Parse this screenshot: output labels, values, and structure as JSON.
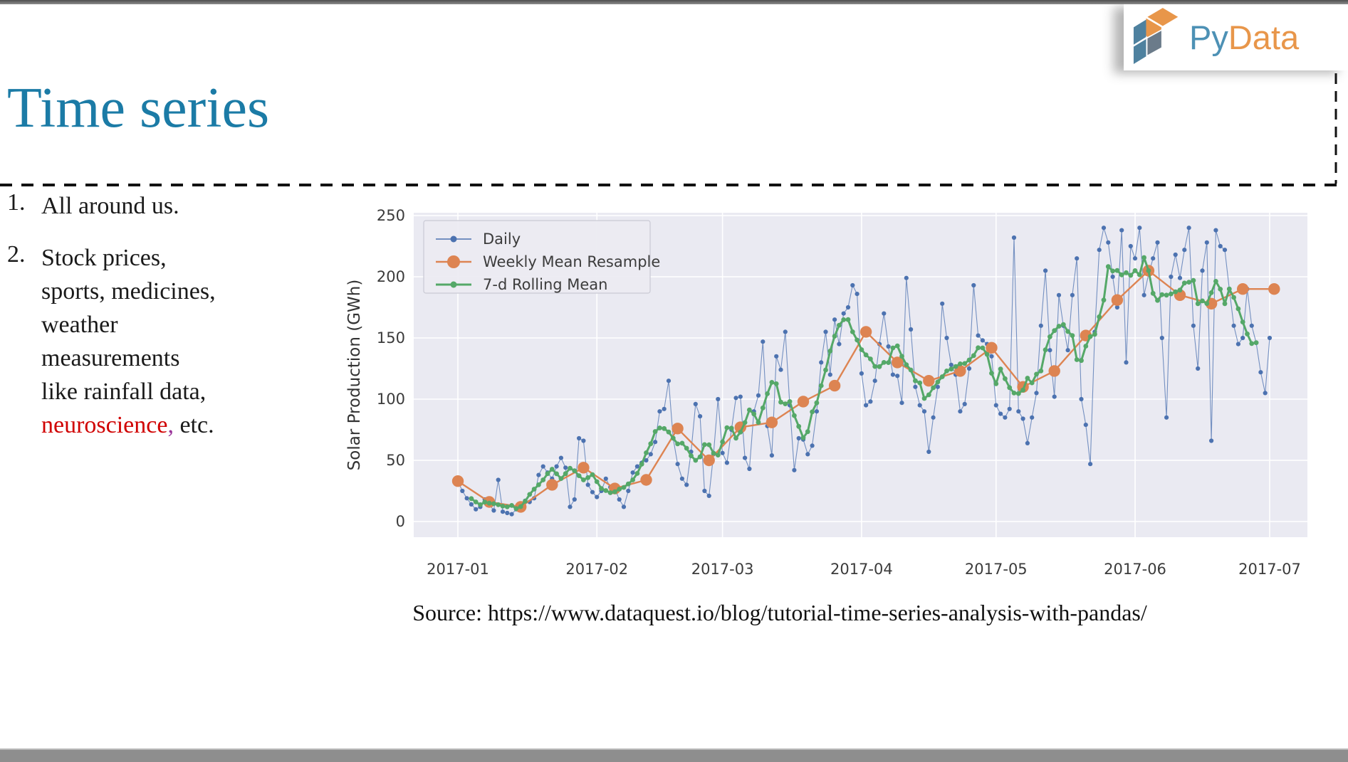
{
  "chrome": {
    "top_bar_color": "#7d7d7d",
    "bottom_bar_color": "#8e8e8e",
    "divider_color": "#111111"
  },
  "logo": {
    "text_py": "Py",
    "text_data": "Data",
    "py_color": "#4d91b5",
    "data_color": "#e8964a",
    "cube_orange": "#e8964a",
    "cube_blue": "#4e819f",
    "cube_gray": "#6b7b8a"
  },
  "slide": {
    "title": "Time series",
    "title_color": "#1b7ba6",
    "source_line": "Source: https://www.dataquest.io/blog/tutorial-time-series-analysis-with-pandas/"
  },
  "list_items": [
    {
      "number": "1.",
      "lines": [
        [
          {
            "t": "All around us.",
            "c": "#1a1a1a"
          }
        ]
      ]
    },
    {
      "number": "2.",
      "lines": [
        [
          {
            "t": "Stock prices,",
            "c": "#1a1a1a"
          }
        ],
        [
          {
            "t": "sports, medicines,",
            "c": "#1a1a1a"
          }
        ],
        [
          {
            "t": "weather",
            "c": "#1a1a1a"
          }
        ],
        [
          {
            "t": "measurements",
            "c": "#1a1a1a"
          }
        ],
        [
          {
            "t": "like rainfall data,",
            "c": "#1a1a1a"
          }
        ],
        [
          {
            "t": "neuroscience",
            "c": "#d00000"
          },
          {
            "t": ",",
            "c": "#993399"
          },
          {
            "t": " etc.",
            "c": "#1a1a1a"
          }
        ]
      ]
    }
  ],
  "chart_data": {
    "type": "line",
    "title": "",
    "xlabel": "",
    "ylabel": "Solar Production (GWh)",
    "x_tick_labels": [
      "2017-01",
      "2017-02",
      "2017-03",
      "2017-04",
      "2017-05",
      "2017-06",
      "2017-07"
    ],
    "month_day_offsets": [
      0,
      31,
      59,
      90,
      120,
      151,
      181
    ],
    "y_ticks": [
      0,
      50,
      100,
      150,
      200,
      250
    ],
    "ylim": [
      -13,
      252
    ],
    "xlim_days": [
      -10,
      192
    ],
    "grid": true,
    "plot_background": "#eaeaf2",
    "grid_color": "#ffffff",
    "tick_color": "#3b3b3b",
    "legend_position": "upper left",
    "legend": [
      "Daily",
      "Weekly Mean Resample",
      "7-d Rolling Mean"
    ],
    "series": [
      {
        "name": "Daily",
        "color": "#4c72b0",
        "line_width": 1.1,
        "marker_radius": 3.1,
        "start_date": "2017-01-01",
        "values": [
          33,
          25,
          19,
          14,
          10,
          12,
          18,
          14,
          9,
          34,
          8,
          7,
          6,
          10,
          10,
          17,
          16,
          19,
          38,
          45,
          40,
          35,
          45,
          52,
          44,
          12,
          18,
          68,
          66,
          30,
          24,
          20,
          25,
          35,
          28,
          27,
          18,
          12,
          25,
          40,
          45,
          48,
          50,
          55,
          65,
          90,
          92,
          115,
          68,
          47,
          35,
          30,
          57,
          96,
          86,
          25,
          21,
          55,
          100,
          56,
          48,
          75,
          101,
          102,
          52,
          43,
          90,
          103,
          147,
          78,
          54,
          135,
          124,
          155,
          95,
          42,
          68,
          67,
          55,
          62,
          90,
          130,
          155,
          120,
          165,
          145,
          170,
          175,
          193,
          186,
          121,
          95,
          98,
          115,
          145,
          170,
          143,
          120,
          119,
          97,
          199,
          157,
          110,
          95,
          90,
          57,
          85,
          110,
          178,
          150,
          128,
          120,
          90,
          96,
          125,
          193,
          152,
          148,
          145,
          135,
          95,
          88,
          85,
          92,
          232,
          90,
          84,
          64,
          85,
          105,
          160,
          205,
          140,
          102,
          185,
          160,
          140,
          185,
          215,
          100,
          79,
          47,
          155,
          222,
          240,
          228,
          200,
          175,
          238,
          130,
          225,
          215,
          240,
          185,
          202,
          215,
          228,
          150,
          85,
          200,
          218,
          199,
          222,
          240,
          160,
          125,
          205,
          228,
          66,
          238,
          225,
          222,
          190,
          160,
          145,
          150,
          190,
          160,
          146,
          122,
          105,
          150
        ]
      },
      {
        "name": "Weekly Mean Resample",
        "color": "#dd8452",
        "line_width": 2.4,
        "marker_radius": 8.2,
        "points_day_value": [
          [
            0,
            33
          ],
          [
            7,
            16
          ],
          [
            14,
            12
          ],
          [
            21,
            30
          ],
          [
            28,
            44
          ],
          [
            35,
            27
          ],
          [
            42,
            34
          ],
          [
            49,
            76
          ],
          [
            56,
            50
          ],
          [
            63,
            77
          ],
          [
            70,
            81
          ],
          [
            77,
            98
          ],
          [
            84,
            111
          ],
          [
            91,
            155
          ],
          [
            98,
            130
          ],
          [
            105,
            115
          ],
          [
            112,
            123
          ],
          [
            119,
            142
          ],
          [
            126,
            110
          ],
          [
            133,
            123
          ],
          [
            140,
            152
          ],
          [
            147,
            181
          ],
          [
            154,
            205
          ],
          [
            161,
            185
          ],
          [
            168,
            178
          ],
          [
            175,
            190
          ],
          [
            182,
            190
          ]
        ]
      },
      {
        "name": "7-d Rolling Mean",
        "color": "#55a868",
        "line_width": 3.0,
        "marker_radius": 3.4,
        "derived": "centered 7-day rolling mean of Daily series",
        "rolling_window": 7
      }
    ]
  }
}
